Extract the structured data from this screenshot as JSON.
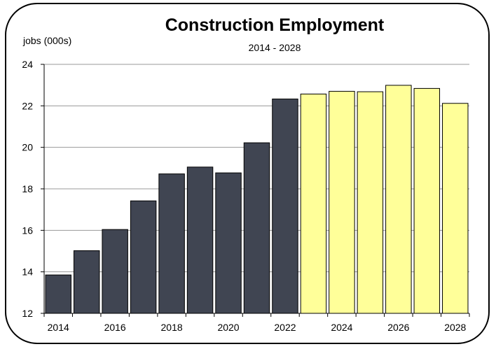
{
  "chart_data": {
    "type": "bar",
    "title": "Construction Employment",
    "subtitle": "2014 - 2028",
    "ylabel": "jobs (000s)",
    "xlabel": "",
    "ylim": [
      12,
      24
    ],
    "yticks": [
      12,
      14,
      16,
      18,
      20,
      22,
      24
    ],
    "xtick_labels": [
      "2014",
      "2016",
      "2018",
      "2020",
      "2022",
      "2024",
      "2026",
      "2028"
    ],
    "grid": true,
    "legend": "none",
    "categories": [
      "2014",
      "2015",
      "2016",
      "2017",
      "2018",
      "2019",
      "2020",
      "2021",
      "2022",
      "2023",
      "2024",
      "2025",
      "2026",
      "2027",
      "2028"
    ],
    "values": [
      13.85,
      15.02,
      16.04,
      17.42,
      18.72,
      19.05,
      18.77,
      20.22,
      22.33,
      22.57,
      22.7,
      22.68,
      22.99,
      22.84,
      22.12
    ],
    "bar_colors": {
      "actual": "#404552",
      "forecast": "#FFFF99"
    },
    "forecast_start_index": 9
  }
}
